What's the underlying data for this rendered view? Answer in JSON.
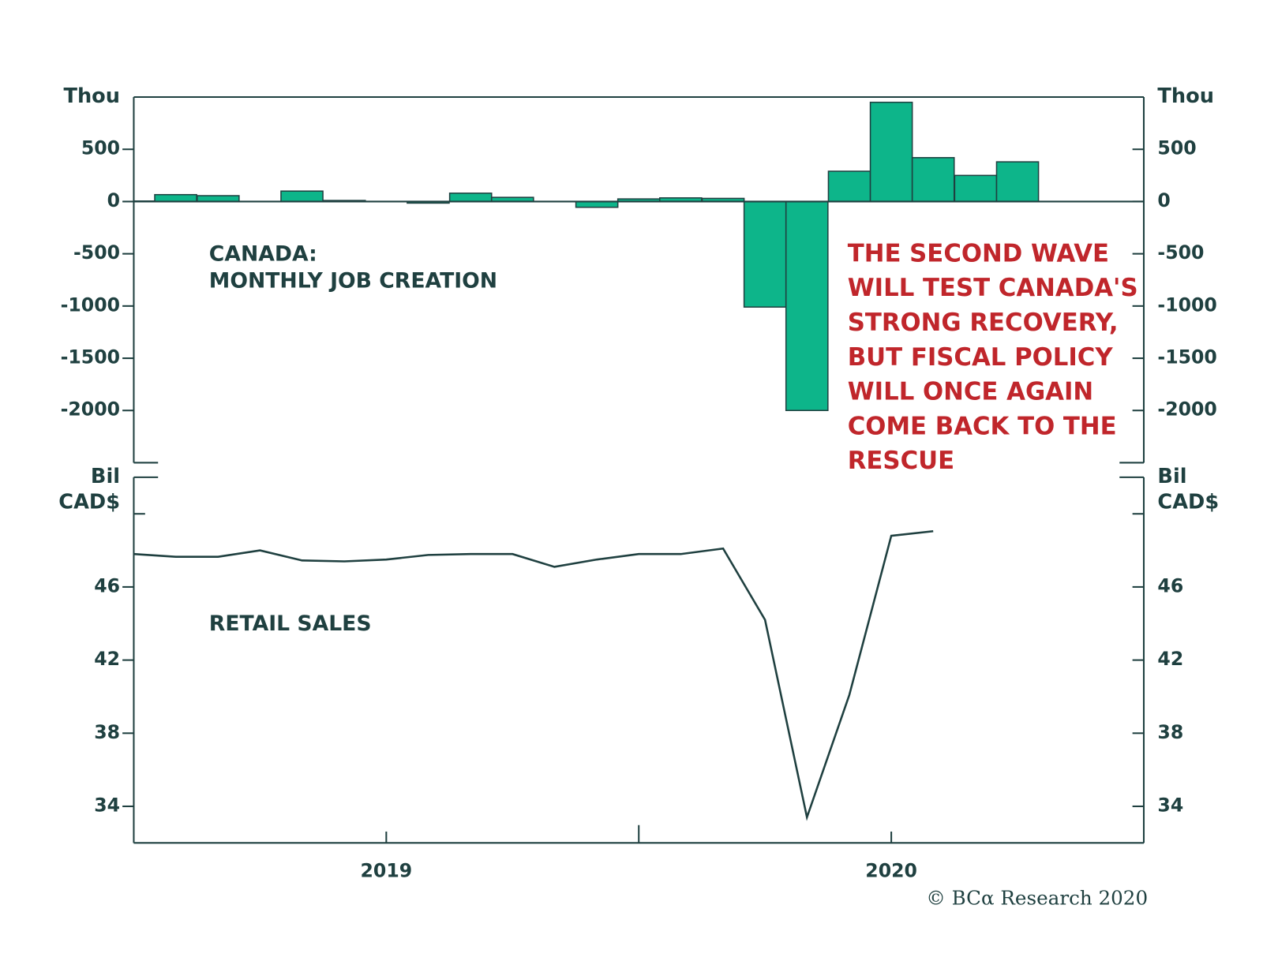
{
  "chart_data": [
    {
      "type": "bar",
      "y_unit_label": "Thou",
      "annotation": [
        "CANADA:",
        "MONTHLY JOB CREATION"
      ],
      "callout": [
        "THE SECOND WAVE",
        "WILL TEST CANADA'S",
        "STRONG RECOVERY,",
        "BUT FISCAL POLICY",
        "WILL ONCE AGAIN",
        "COME BACK TO THE",
        "RESCUE"
      ],
      "x": [
        2018.5,
        2018.583,
        2018.667,
        2018.75,
        2018.833,
        2018.917,
        2019,
        2019.083,
        2019.167,
        2019.25,
        2019.333,
        2019.417,
        2019.5,
        2019.583,
        2019.667,
        2019.75,
        2019.833,
        2019.917,
        2020,
        2020.083,
        2020.167,
        2020.25
      ],
      "values": [
        5,
        66,
        56,
        0,
        100,
        10,
        0,
        -15,
        80,
        40,
        0,
        -55,
        25,
        35,
        30,
        -1010,
        -2000,
        290,
        950,
        420,
        250,
        380
      ],
      "color": "#0db58a",
      "xlim": [
        2018.5,
        2020.5
      ],
      "ylim": [
        -2500,
        1000
      ],
      "yticks": [
        -2000,
        -1500,
        -1000,
        -500,
        0,
        500
      ]
    },
    {
      "type": "line",
      "y_unit_label": [
        "Bil",
        "CAD$"
      ],
      "annotation": [
        "RETAIL SALES"
      ],
      "x": [
        2018.5,
        2018.583,
        2018.667,
        2018.75,
        2018.833,
        2018.917,
        2019,
        2019.083,
        2019.167,
        2019.25,
        2019.333,
        2019.417,
        2019.5,
        2019.583,
        2019.667,
        2019.75,
        2019.833,
        2019.917,
        2020,
        2020.083
      ],
      "values": [
        47.8,
        47.65,
        47.65,
        48.0,
        47.45,
        47.4,
        47.5,
        47.75,
        47.8,
        47.8,
        47.1,
        47.5,
        47.8,
        47.8,
        48.1,
        44.2,
        33.4,
        40.1,
        48.8,
        49.05
      ],
      "color": "#1f4040",
      "xlim": [
        2018.5,
        2020.5
      ],
      "xticks": [
        2019,
        2020
      ],
      "xminorticks": [
        2019.5
      ],
      "ylim": [
        32,
        52
      ],
      "yticks": [
        34,
        38,
        42,
        46
      ],
      "yminorticks": [
        50
      ]
    }
  ],
  "credit": "© BCα Research 2020"
}
